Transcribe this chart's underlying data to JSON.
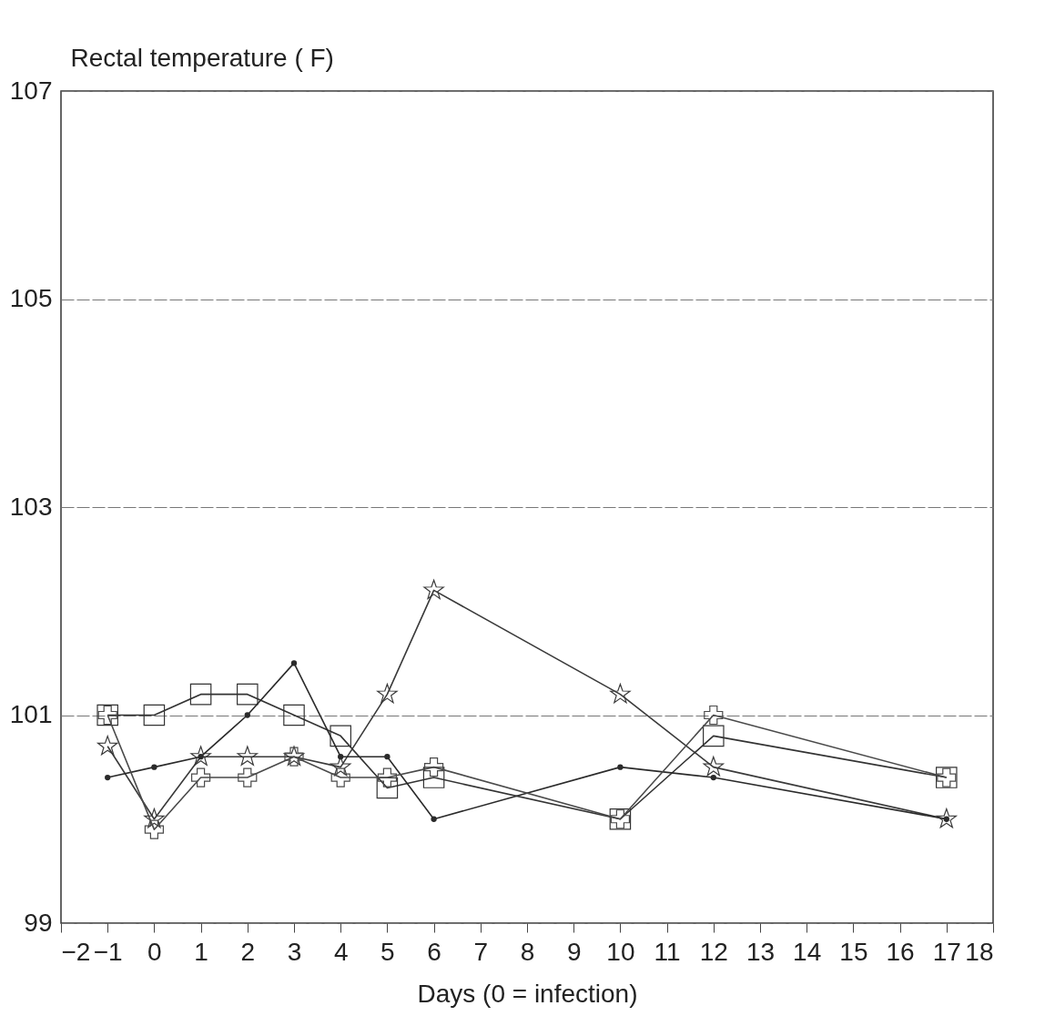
{
  "chart_data": {
    "type": "line",
    "xlabel": "Days (0 = infection)",
    "ylabel": "Rectal temperature ( F)",
    "x": [
      -1,
      0,
      1,
      2,
      3,
      4,
      5,
      6,
      10,
      12,
      17
    ],
    "series": [
      {
        "color": "#333333",
        "marker": "square",
        "values": [
          101.0,
          101.0,
          101.2,
          101.2,
          101.0,
          100.8,
          100.3,
          100.4,
          100.0,
          100.8,
          100.4
        ]
      },
      {
        "color": "#3a3a3a",
        "marker": "star",
        "values": [
          100.7,
          100.0,
          100.6,
          100.6,
          100.6,
          100.5,
          101.2,
          102.2,
          101.2,
          100.5,
          100.0
        ]
      },
      {
        "color": "#2a2a2a",
        "marker": "circle",
        "values": [
          100.4,
          100.5,
          100.6,
          101.0,
          101.5,
          100.6,
          100.6,
          100.0,
          100.5,
          100.4,
          100.0
        ]
      },
      {
        "color": "#4a4a4a",
        "marker": "cross",
        "values": [
          101.0,
          99.9,
          100.4,
          100.4,
          100.6,
          100.4,
          100.4,
          100.5,
          100.0,
          101.0,
          100.4
        ]
      }
    ],
    "xlim": [
      -2,
      18
    ],
    "xticks": [
      -2,
      -1,
      0,
      1,
      2,
      3,
      4,
      5,
      6,
      7,
      8,
      9,
      10,
      11,
      12,
      13,
      14,
      15,
      16,
      17,
      18
    ],
    "ylim": [
      99,
      107
    ],
    "yticks": [
      99,
      101,
      103,
      105,
      107
    ],
    "grid": "y"
  }
}
